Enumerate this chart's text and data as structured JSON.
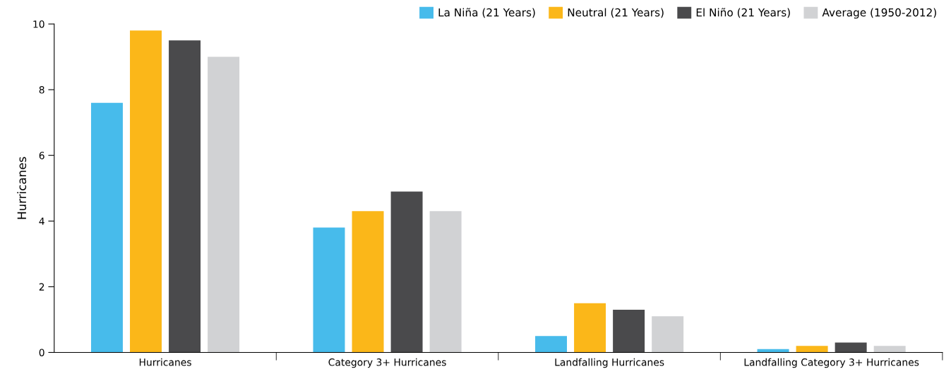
{
  "chart_data": {
    "type": "bar",
    "ylabel": "Hurricanes",
    "categories": [
      "Hurricanes",
      "Category 3+ Hurricanes",
      "Landfalling Hurricanes",
      "Landfalling Category 3+ Hurricanes"
    ],
    "series": [
      {
        "name": "La Niña (21 Years)",
        "color": "#47bbeb",
        "values": [
          7.6,
          3.8,
          0.5,
          0.1
        ]
      },
      {
        "name": "Neutral (21 Years)",
        "color": "#fbb719",
        "values": [
          9.8,
          4.3,
          1.5,
          0.2
        ]
      },
      {
        "name": "El Niño (21 Years)",
        "color": "#4a4a4c",
        "values": [
          9.5,
          4.9,
          1.3,
          0.3
        ]
      },
      {
        "name": "Average (1950-2012)",
        "color": "#d1d2d4",
        "values": [
          9.0,
          4.3,
          1.1,
          0.2
        ]
      }
    ],
    "ylim": [
      0,
      10
    ],
    "yticks": [
      0,
      2,
      4,
      6,
      8,
      10
    ],
    "grid": false,
    "legend": "top right"
  }
}
